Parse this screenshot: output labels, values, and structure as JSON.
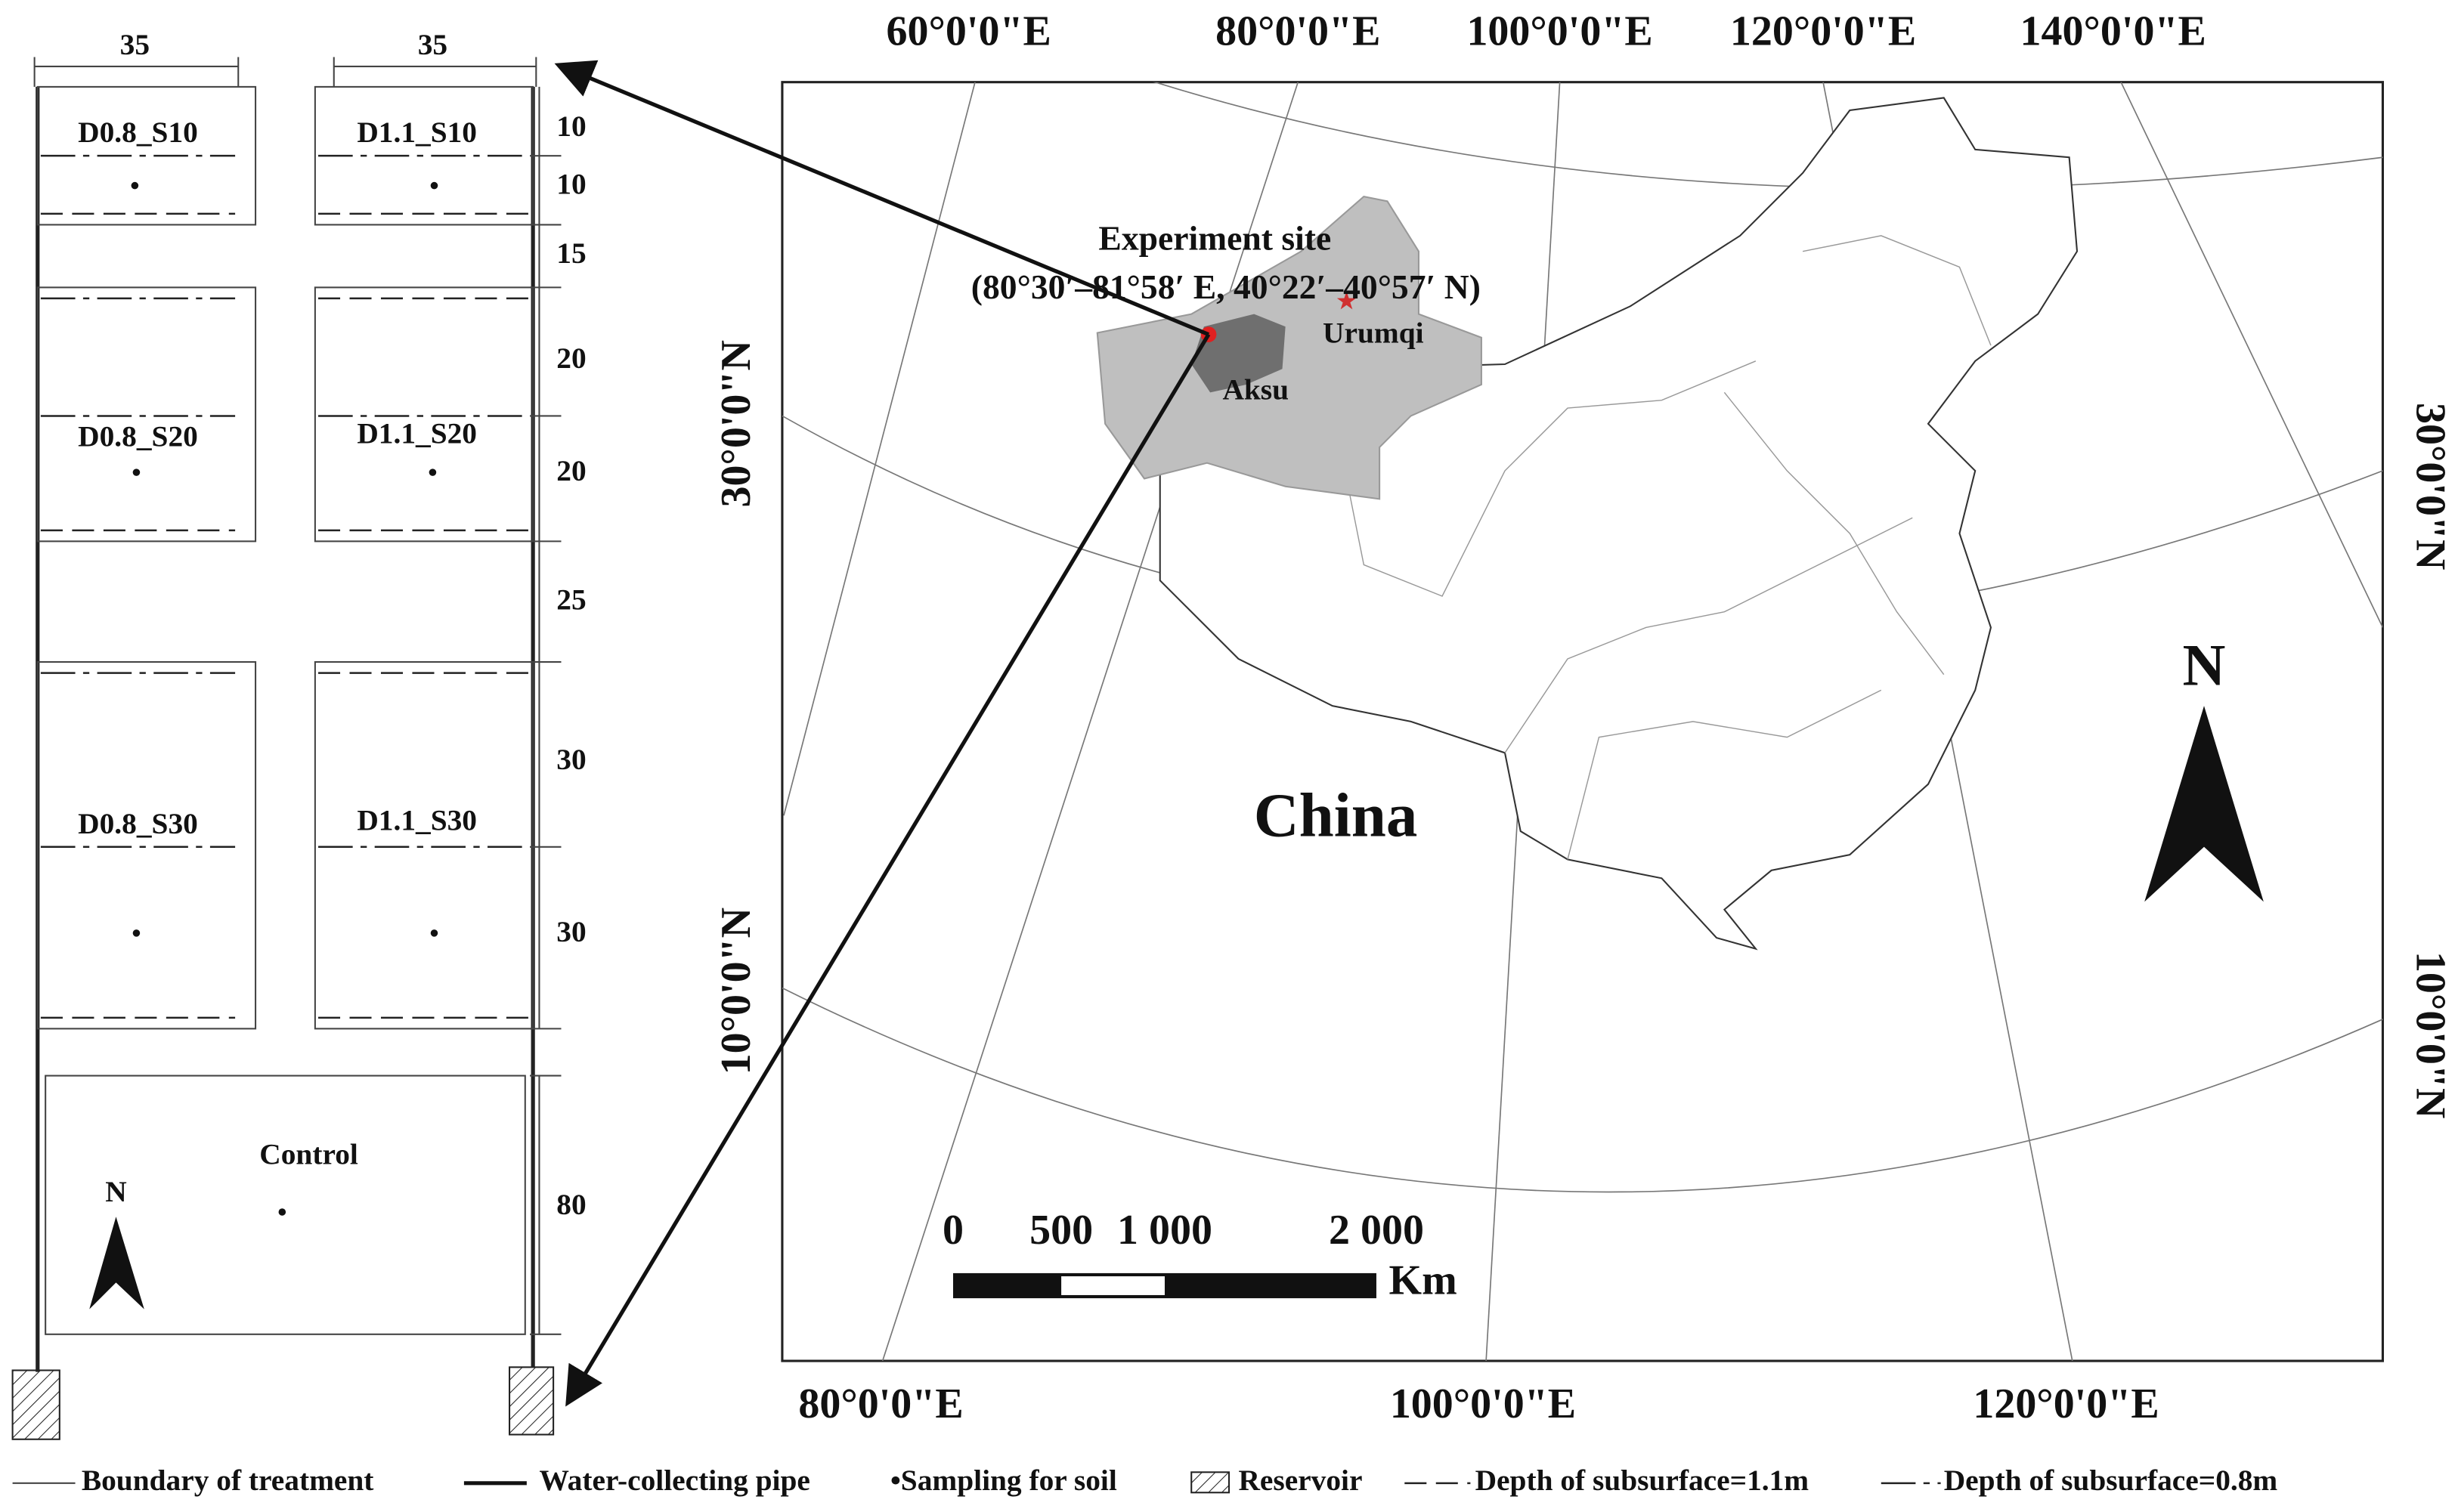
{
  "layout": {
    "widths": [
      "35",
      "35"
    ],
    "plots": [
      "D0.8_S10",
      "D1.1_S10",
      "D0.8_S20",
      "D1.1_S20",
      "D0.8_S30",
      "D1.1_S30"
    ],
    "control": "Control",
    "north": "N",
    "dims": [
      "10",
      "10",
      "15",
      "20",
      "20",
      "25",
      "30",
      "30",
      "80"
    ]
  },
  "map": {
    "top_lon": [
      "60°0'0\"E",
      "80°0'0\"E",
      "100°0'0\"E",
      "120°0'0\"E",
      "140°0'0\"E"
    ],
    "bottom_lon": [
      "80°0'0\"E",
      "100°0'0\"E",
      "120°0'0\"E"
    ],
    "left_lat": [
      "30°0'0\"N",
      "10°0'0\"N"
    ],
    "right_lat": [
      "30°0'0\"N",
      "10°0'0\"N"
    ],
    "site_title": "Experiment site",
    "site_coords": "(80°30′–81°58′ E, 40°22′–40°57′ N)",
    "urumqi": "Urumqi",
    "aksu": "Aksu",
    "country": "China",
    "north": "N",
    "scale": [
      "0",
      "500",
      "1 000",
      "2 000"
    ],
    "scale_unit": "Km"
  },
  "legend": [
    "Boundary of treatment",
    "Water-collecting pipe",
    "•Sampling for soil",
    "Reservoir",
    "Depth of subsurface=1.1m",
    "Depth of subsurface=0.8m"
  ]
}
